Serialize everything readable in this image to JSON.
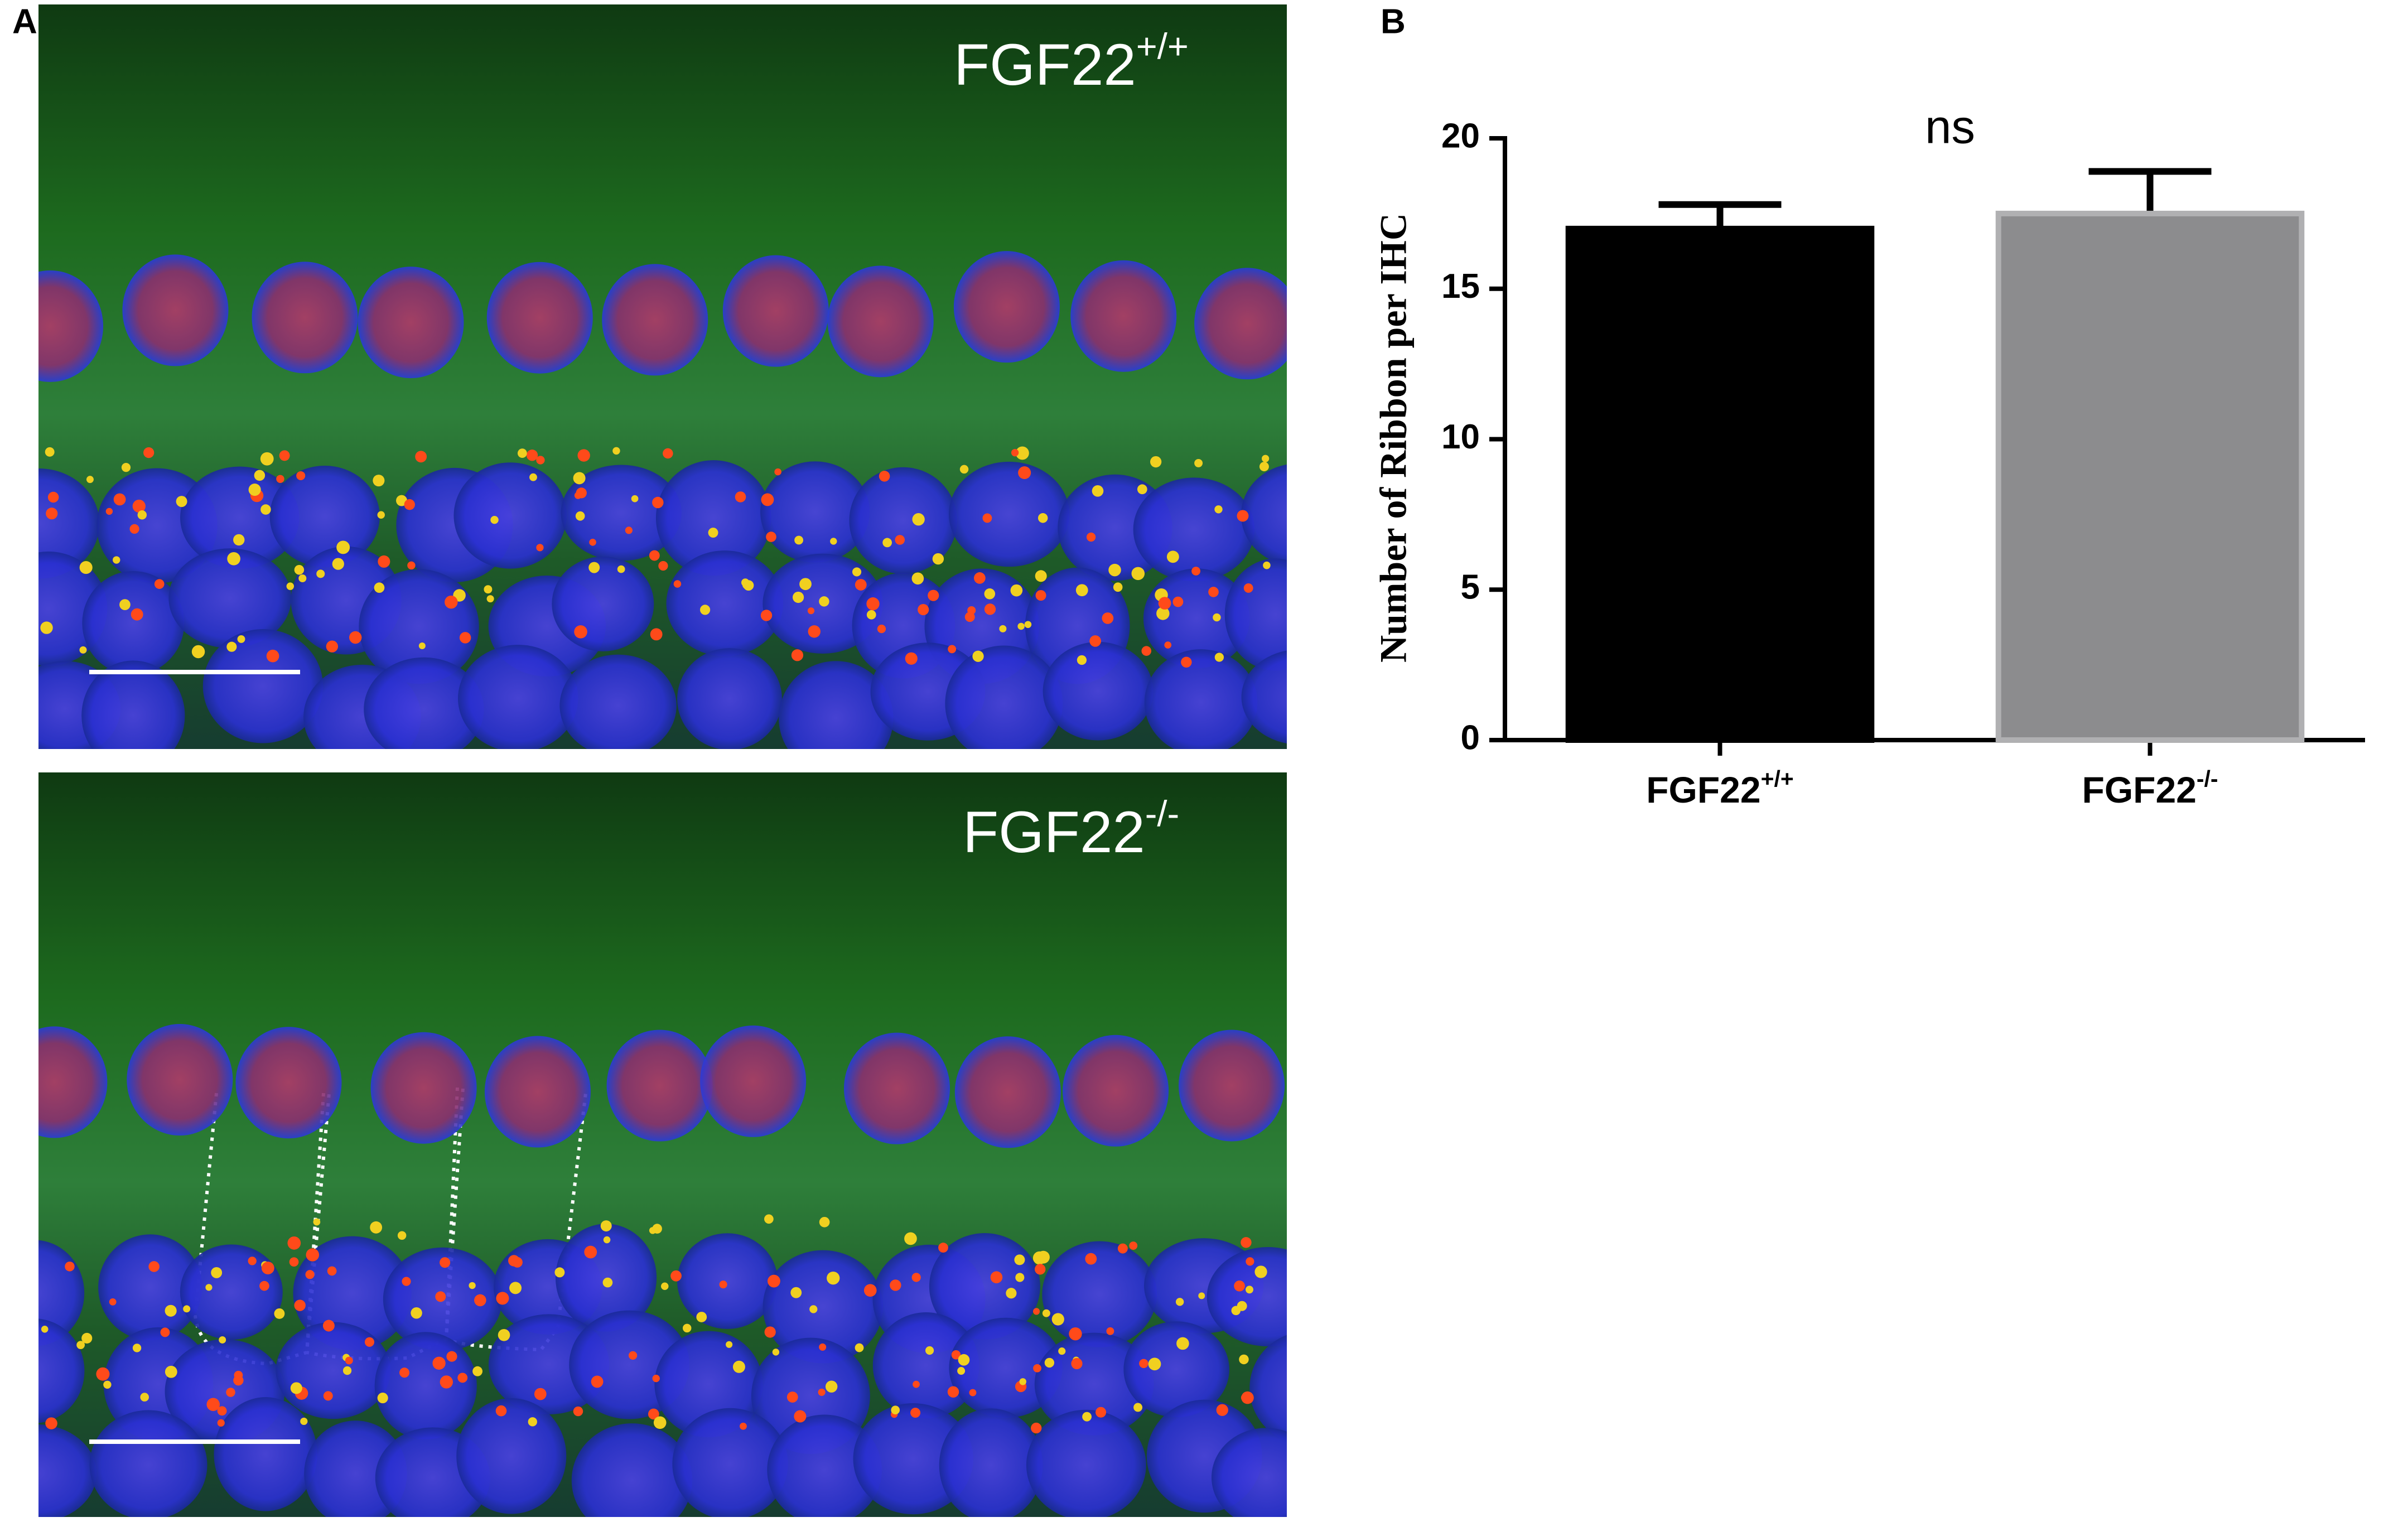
{
  "panels": {
    "a": "A",
    "b": "B"
  },
  "images": [
    {
      "label": "FGF22+/+"
    },
    {
      "label": "FGF22-/-"
    }
  ],
  "chart_data": {
    "type": "bar",
    "ylabel": "Number of Ribbon per IHC",
    "annotation": "ns",
    "categories": [
      "FGF22+/+",
      "FGF22-/-"
    ],
    "values": [
      17.0,
      17.5
    ],
    "errors": [
      0.8,
      1.4
    ],
    "colors": [
      "#000000",
      "#8c8c8e"
    ],
    "ylim": [
      0,
      20
    ],
    "yticks": [
      0,
      5,
      10,
      15,
      20
    ],
    "grid": false
  }
}
